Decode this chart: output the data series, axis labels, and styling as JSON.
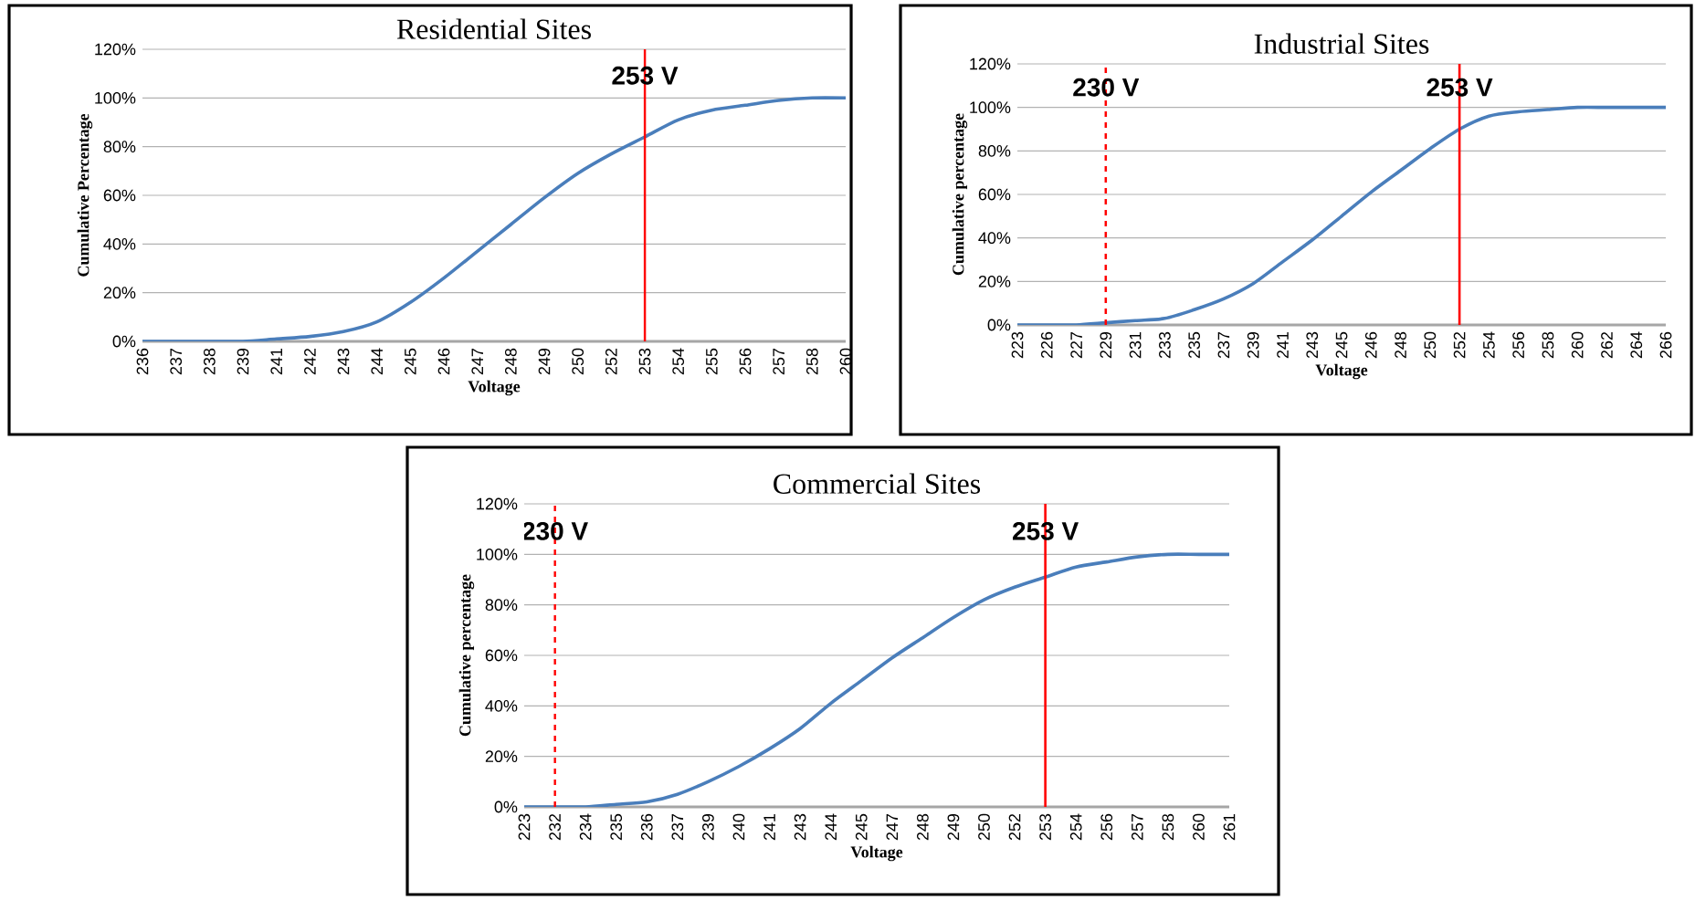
{
  "chart_data": [
    {
      "type": "line",
      "title": "Residential Sites",
      "xlabel": "Voltage",
      "ylabel": "Cumulative Percentage",
      "categories": [
        "236",
        "237",
        "238",
        "239",
        "241",
        "242",
        "243",
        "244",
        "245",
        "246",
        "247",
        "248",
        "249",
        "250",
        "252",
        "253",
        "254",
        "255",
        "256",
        "257",
        "258",
        "260"
      ],
      "series": [
        {
          "color": "#4a7ebb",
          "values": [
            0,
            0,
            0,
            0,
            1,
            2,
            4,
            8,
            16,
            26,
            37,
            48,
            59,
            69,
            77,
            84,
            91,
            95,
            97,
            99,
            100,
            100
          ]
        }
      ],
      "ylim": [
        0,
        120
      ],
      "yticks": [
        {
          "value": 0,
          "label": "0%"
        },
        {
          "value": 20,
          "label": "20%"
        },
        {
          "value": 40,
          "label": "40%"
        },
        {
          "value": 60,
          "label": "60%"
        },
        {
          "value": 80,
          "label": "80%"
        },
        {
          "value": 100,
          "label": "100%"
        },
        {
          "value": 120,
          "label": "120%"
        }
      ],
      "grid": "y",
      "marker": "none",
      "ref_lines": [
        {
          "axis": "x",
          "value": "253",
          "label": "253 V",
          "color": "#ff0000",
          "line_style": "solid"
        }
      ]
    },
    {
      "type": "line",
      "title": "Industrial Sites",
      "xlabel": "Voltage",
      "ylabel": "Cumulative percentage",
      "categories": [
        "223",
        "226",
        "227",
        "229",
        "231",
        "233",
        "235",
        "237",
        "239",
        "241",
        "243",
        "245",
        "246",
        "248",
        "250",
        "252",
        "254",
        "256",
        "258",
        "260",
        "262",
        "264",
        "266"
      ],
      "series": [
        {
          "color": "#4a7ebb",
          "values": [
            0,
            0,
            0,
            1,
            2,
            3,
            7,
            12,
            19,
            29,
            39,
            50,
            61,
            71,
            81,
            90,
            96,
            98,
            99,
            100,
            100,
            100,
            100
          ]
        }
      ],
      "ylim": [
        0,
        120
      ],
      "yticks": [
        {
          "value": 0,
          "label": "0%"
        },
        {
          "value": 20,
          "label": "20%"
        },
        {
          "value": 40,
          "label": "40%"
        },
        {
          "value": 60,
          "label": "60%"
        },
        {
          "value": 80,
          "label": "80%"
        },
        {
          "value": 100,
          "label": "100%"
        },
        {
          "value": 120,
          "label": "120%"
        }
      ],
      "grid": "y",
      "marker": "none",
      "ref_lines": [
        {
          "axis": "x",
          "value": "229",
          "label": "230 V",
          "color": "#ff0000",
          "line_style": "dashed"
        },
        {
          "axis": "x",
          "value": "252",
          "label": "253 V",
          "color": "#ff0000",
          "line_style": "solid"
        }
      ]
    },
    {
      "type": "line",
      "title": "Commercial Sites",
      "xlabel": "Voltage",
      "ylabel": "Cumulative percentage",
      "categories": [
        "223",
        "232",
        "234",
        "235",
        "236",
        "237",
        "239",
        "240",
        "241",
        "243",
        "244",
        "245",
        "247",
        "248",
        "249",
        "250",
        "252",
        "253",
        "254",
        "256",
        "257",
        "258",
        "260",
        "261"
      ],
      "series": [
        {
          "color": "#4a7ebb",
          "values": [
            0,
            0,
            0,
            1,
            2,
            5,
            10,
            16,
            23,
            31,
            41,
            50,
            59,
            67,
            75,
            82,
            87,
            91,
            95,
            97,
            99,
            100,
            100,
            100
          ]
        }
      ],
      "ylim": [
        0,
        120
      ],
      "yticks": [
        {
          "value": 0,
          "label": "0%"
        },
        {
          "value": 20,
          "label": "20%"
        },
        {
          "value": 40,
          "label": "40%"
        },
        {
          "value": 60,
          "label": "60%"
        },
        {
          "value": 80,
          "label": "80%"
        },
        {
          "value": 100,
          "label": "100%"
        },
        {
          "value": 120,
          "label": "120%"
        }
      ],
      "grid": "y",
      "marker": "none",
      "ref_lines": [
        {
          "axis": "x",
          "value": "232",
          "label": "230 V",
          "color": "#ff0000",
          "line_style": "dashed"
        },
        {
          "axis": "x",
          "value": "253",
          "label": "253 V",
          "color": "#ff0000",
          "line_style": "solid"
        }
      ]
    }
  ]
}
